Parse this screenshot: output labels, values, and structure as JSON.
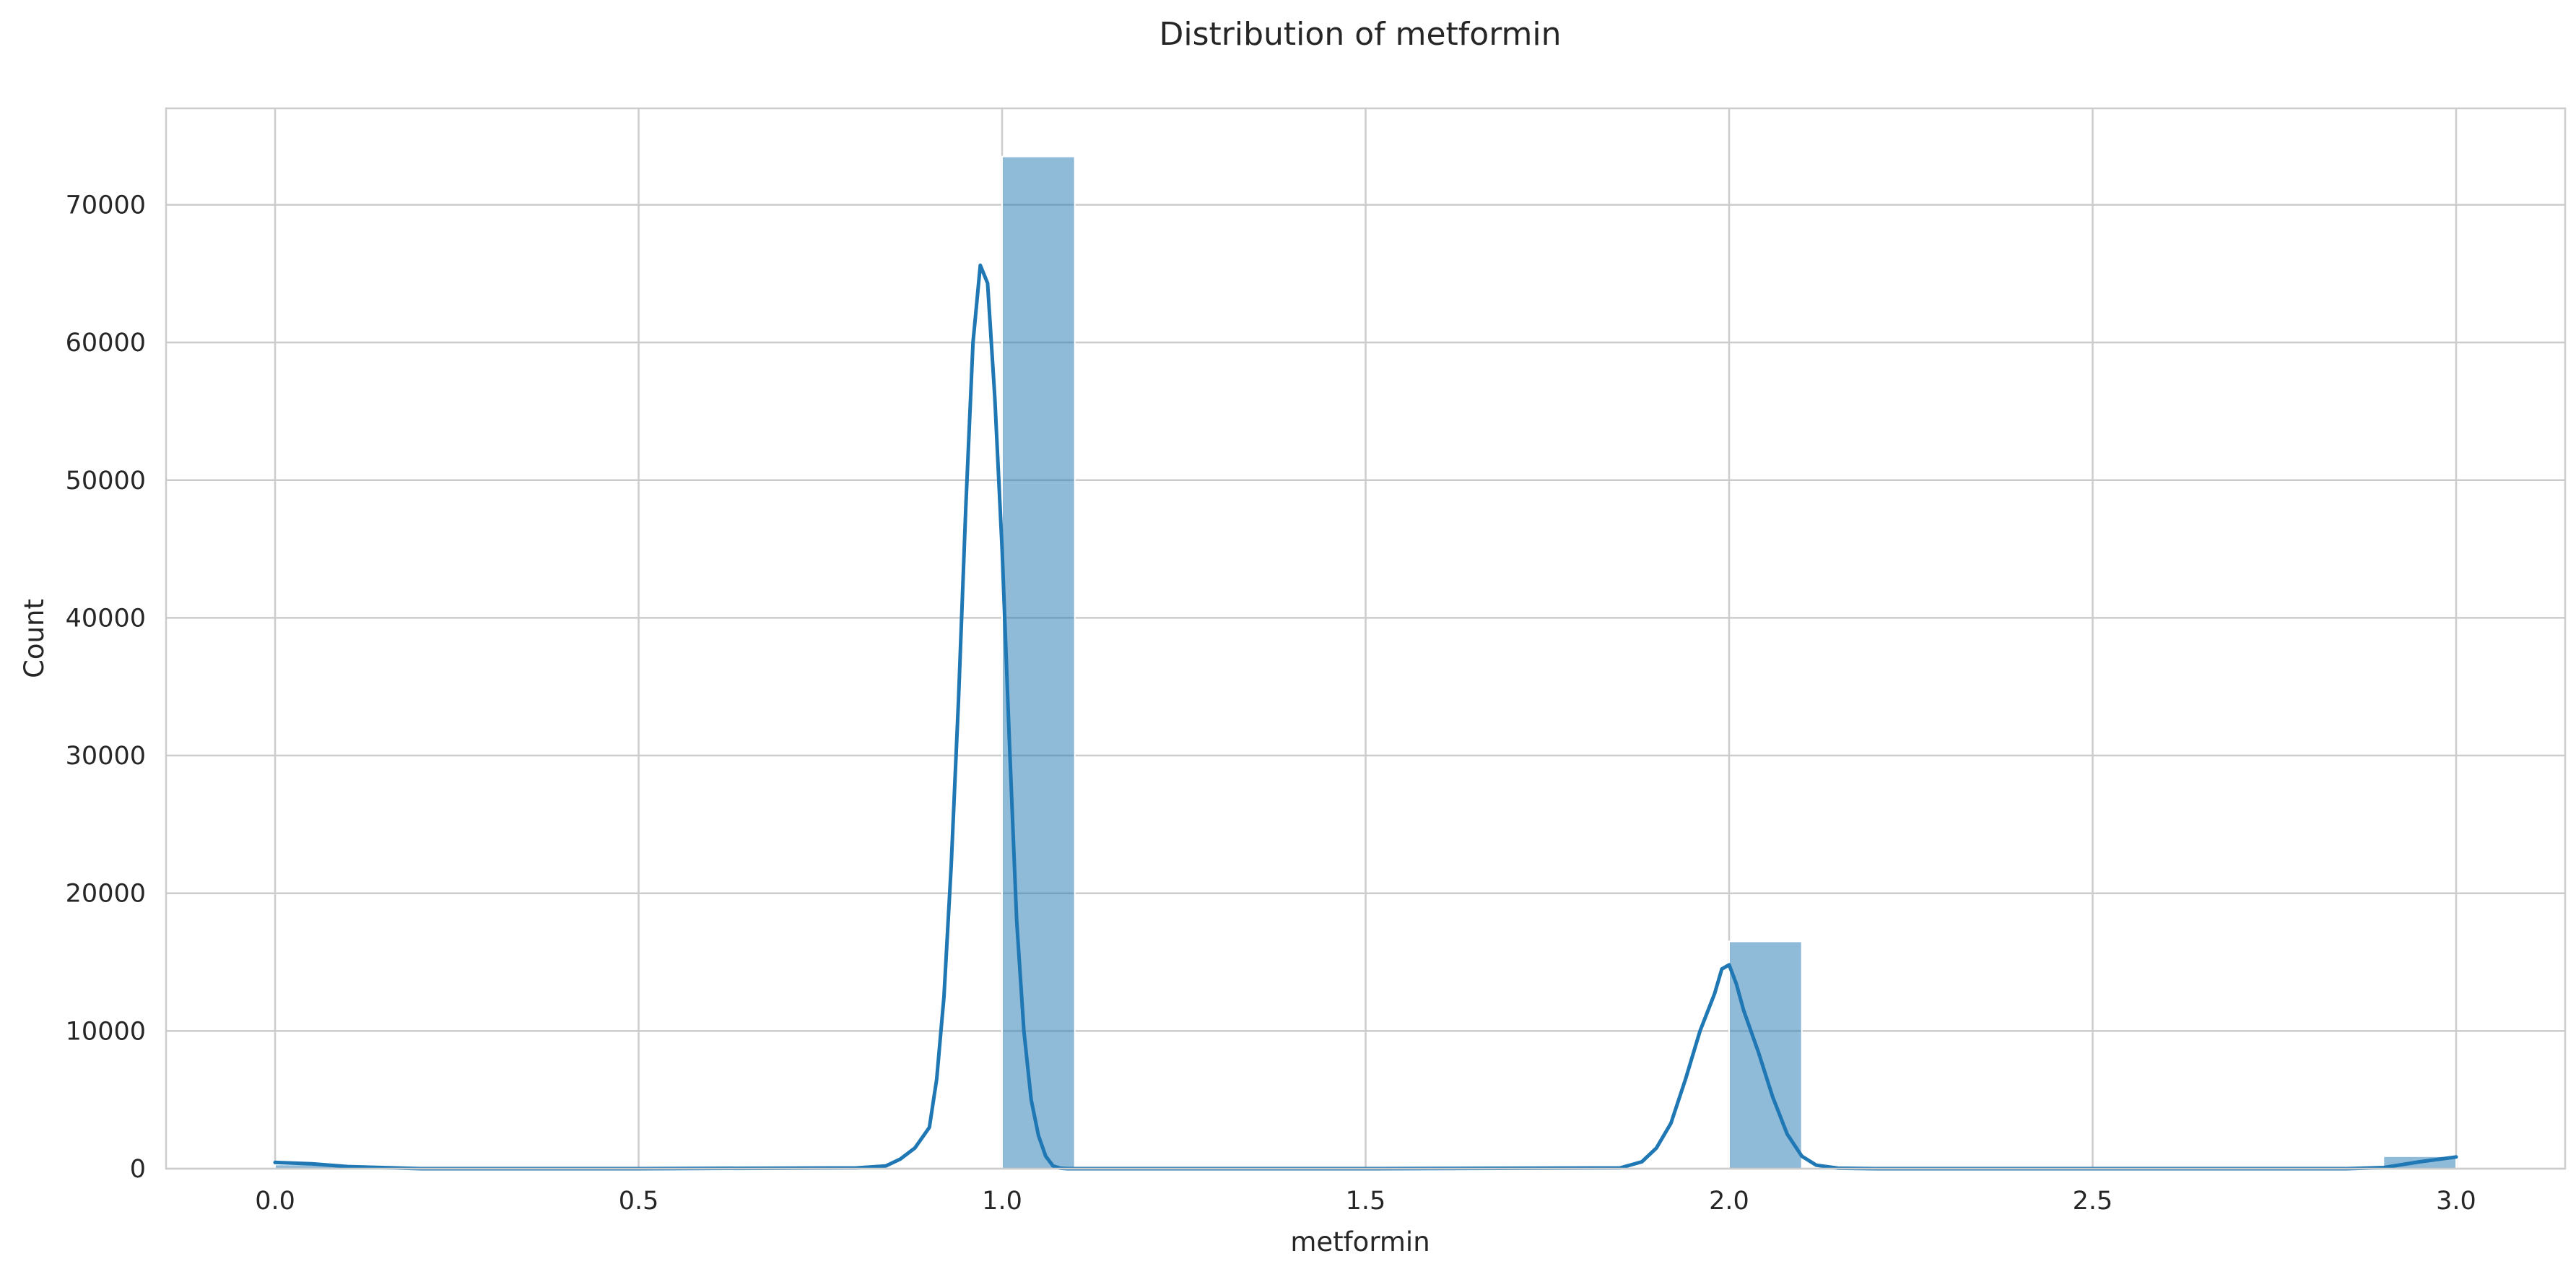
{
  "chart_data": {
    "type": "bar",
    "title": "Distribution of metformin",
    "xlabel": "metformin",
    "ylabel": "Count",
    "xlim": [
      -0.15,
      3.15
    ],
    "ylim": [
      0,
      77000
    ],
    "grid": true,
    "legend": "none",
    "x_ticks": [
      "0.0",
      "0.5",
      "1.0",
      "1.5",
      "2.0",
      "2.5",
      "3.0"
    ],
    "y_ticks": [
      "0",
      "10000",
      "20000",
      "30000",
      "40000",
      "50000",
      "60000",
      "70000"
    ],
    "bin_width": 0.1,
    "bins": [
      {
        "start": 0.0,
        "count": 300
      },
      {
        "start": 1.0,
        "count": 73500
      },
      {
        "start": 2.0,
        "count": 16500
      },
      {
        "start": 2.9,
        "count": 900
      }
    ],
    "kde": {
      "x": [
        0.0,
        0.05,
        0.1,
        0.2,
        0.5,
        0.8,
        0.84,
        0.86,
        0.88,
        0.9,
        0.91,
        0.92,
        0.93,
        0.94,
        0.95,
        0.96,
        0.97,
        0.98,
        0.99,
        1.0,
        1.01,
        1.02,
        1.03,
        1.04,
        1.05,
        1.06,
        1.07,
        1.08,
        1.09,
        1.1,
        1.12,
        1.14,
        1.17,
        1.2,
        1.5,
        1.85,
        1.88,
        1.9,
        1.92,
        1.94,
        1.96,
        1.98,
        1.99,
        2.0,
        2.01,
        2.02,
        2.04,
        2.06,
        2.08,
        2.1,
        2.12,
        2.15,
        2.2,
        2.5,
        2.85,
        2.9,
        2.95,
        3.0
      ],
      "y": [
        450,
        350,
        150,
        0,
        0,
        50,
        200,
        700,
        1500,
        3000,
        6500,
        12500,
        22000,
        34000,
        48000,
        60000,
        65600,
        64300,
        56000,
        45000,
        31000,
        18000,
        10000,
        5000,
        2400,
        900,
        200,
        30,
        0,
        0,
        0,
        0,
        0,
        0,
        0,
        50,
        500,
        1500,
        3300,
        6500,
        10000,
        12700,
        14500,
        14800,
        13400,
        11500,
        8500,
        5200,
        2500,
        900,
        250,
        30,
        0,
        0,
        0,
        80,
        500,
        850
      ],
      "color": "#1f77b4"
    },
    "colors": {
      "bar_fill": "#1f77b4",
      "bar_opacity": 0.5,
      "grid": "#cccccc",
      "text": "#262626"
    }
  }
}
